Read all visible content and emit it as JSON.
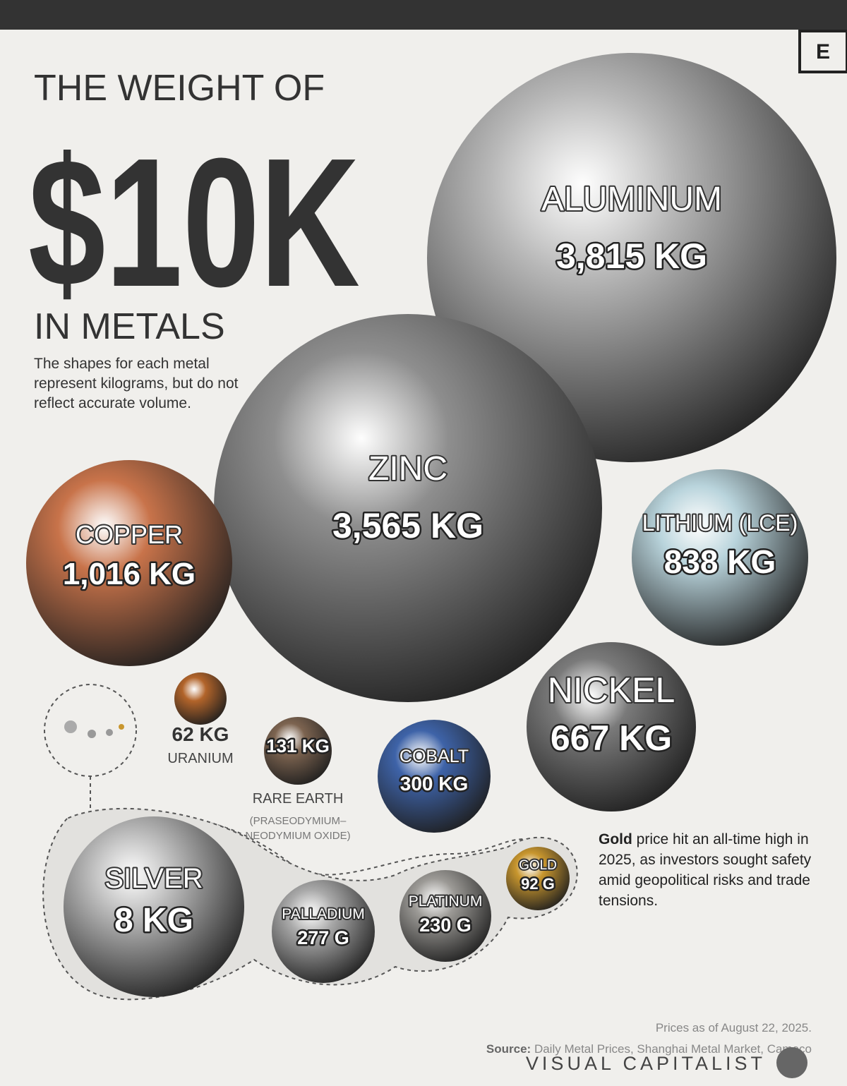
{
  "chart_data": {
    "type": "bubble",
    "title_top": "THE WEIGHT OF",
    "title": "$10K",
    "title_bottom": "IN METALS",
    "subtitle": "The shapes for each metal represent kilograms, but do not reflect accurate volume.",
    "categories": [
      "ALUMINUM",
      "ZINC",
      "COPPER",
      "LITHIUM (LCE)",
      "NICKEL",
      "COBALT",
      "RARE EARTH",
      "URANIUM",
      "SILVER",
      "PALLADIUM",
      "PLATINUM",
      "GOLD"
    ],
    "values": [
      3815,
      3565,
      1016,
      838,
      667,
      300,
      131,
      62,
      8,
      0.277,
      0.23,
      0.092
    ],
    "value_labels": [
      "3,815 KG",
      "3,565 KG",
      "1,016 KG",
      "838 KG",
      "667 KG",
      "300 KG",
      "131 KG",
      "62 KG",
      "8 KG",
      "277 G",
      "230 G",
      "92 G"
    ],
    "colors": [
      "#b8b8b8",
      "#8e8e8e",
      "#c8734a",
      "#b9d4dc",
      "#7a7a7a",
      "#3e63a8",
      "#7d6450",
      "#b2642a",
      "#bdbdbd",
      "#a9a9a9",
      "#9c9a96",
      "#c8962e"
    ],
    "rare_earth_note": "(PRASEODYMIUM–NEODYMIUM OXIDE)",
    "note_bold": "Gold",
    "note": "price hit an all-time high in 2025, as investors sought safety amid geopolitical risks and trade tensions.",
    "date_note": "Prices as of August 22, 2025.",
    "source_label": "Source:",
    "source": "Daily Metal Prices, Shanghai Metal Market, Cameco",
    "brand": "VISUAL CAPITALIST",
    "logo": "E"
  }
}
